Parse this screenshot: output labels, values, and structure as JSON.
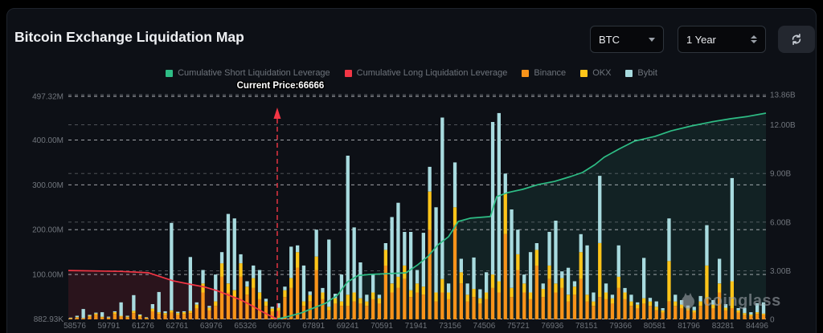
{
  "header": {
    "title": "Bitcoin Exchange Liquidation Map"
  },
  "controls": {
    "symbol_select": {
      "value": "BTC"
    },
    "range_select": {
      "value": "1 Year"
    }
  },
  "legend": {
    "items": [
      {
        "label": "Cumulative Short Liquidation Leverage",
        "color": "#2EBD85"
      },
      {
        "label": "Cumulative Long Liquidation Leverage",
        "color": "#F23645"
      },
      {
        "label": "Binance",
        "color": "#F7931A"
      },
      {
        "label": "OKX",
        "color": "#FFC519"
      },
      {
        "label": "Bybit",
        "color": "#A8DBDF"
      }
    ]
  },
  "watermark": {
    "text": "coinglass"
  },
  "chart_data": {
    "type": "bar",
    "title": "Bitcoin Exchange Liquidation Map",
    "grid": true,
    "legend_position": "top",
    "x_tick_labels": [
      "58576",
      "59791",
      "61276",
      "62761",
      "63976",
      "65326",
      "66676",
      "67891",
      "69241",
      "70591",
      "71941",
      "73156",
      "74506",
      "75721",
      "76936",
      "78151",
      "79366",
      "80581",
      "81796",
      "83281",
      "84496"
    ],
    "left_axis": {
      "unit": "M",
      "max_value": 497.32,
      "ticks": [
        {
          "label": "882.93K",
          "value": 0.88293
        },
        {
          "label": "100.00M",
          "value": 100
        },
        {
          "label": "200.00M",
          "value": 200
        },
        {
          "label": "300.00M",
          "value": 300
        },
        {
          "label": "400.00M",
          "value": 400
        },
        {
          "label": "497.32M",
          "value": 497.32
        }
      ]
    },
    "right_axis": {
      "unit": "B",
      "max_value": 13.86,
      "ticks": [
        {
          "label": "0",
          "value": 0
        },
        {
          "label": "3.00B",
          "value": 3
        },
        {
          "label": "6.00B",
          "value": 6
        },
        {
          "label": "9.00B",
          "value": 9
        },
        {
          "label": "12.00B",
          "value": 12
        },
        {
          "label": "13.86B",
          "value": 13.86
        }
      ]
    },
    "bar_series": [
      {
        "name": "Binance",
        "color": "#F7931A"
      },
      {
        "name": "OKX",
        "color": "#FFC519"
      },
      {
        "name": "Bybit",
        "color": "#A8DBDF"
      }
    ],
    "bars_unit": "M",
    "bars": [
      [
        2,
        1,
        1
      ],
      [
        4,
        1,
        3
      ],
      [
        2,
        1,
        20
      ],
      [
        6,
        2,
        2
      ],
      [
        10,
        3,
        2
      ],
      [
        4,
        2,
        10
      ],
      [
        3,
        1,
        2
      ],
      [
        12,
        4,
        2
      ],
      [
        6,
        2,
        30
      ],
      [
        4,
        2,
        2
      ],
      [
        14,
        5,
        35
      ],
      [
        6,
        3,
        2
      ],
      [
        3,
        1,
        1
      ],
      [
        18,
        6,
        10
      ],
      [
        12,
        4,
        45
      ],
      [
        10,
        4,
        4
      ],
      [
        15,
        5,
        195
      ],
      [
        10,
        4,
        3
      ],
      [
        12,
        4,
        2
      ],
      [
        14,
        5,
        120
      ],
      [
        25,
        8,
        5
      ],
      [
        60,
        20,
        30
      ],
      [
        20,
        6,
        4
      ],
      [
        30,
        10,
        60
      ],
      [
        95,
        30,
        25
      ],
      [
        60,
        20,
        155
      ],
      [
        50,
        15,
        160
      ],
      [
        95,
        30,
        20
      ],
      [
        55,
        18,
        12
      ],
      [
        70,
        22,
        28
      ],
      [
        45,
        15,
        50
      ],
      [
        30,
        10,
        6
      ],
      [
        18,
        6,
        4
      ],
      [
        20,
        6,
        10
      ],
      [
        50,
        15,
        8
      ],
      [
        70,
        22,
        70
      ],
      [
        115,
        35,
        15
      ],
      [
        30,
        10,
        80
      ],
      [
        40,
        14,
        8
      ],
      [
        110,
        30,
        60
      ],
      [
        45,
        15,
        10
      ],
      [
        20,
        8,
        150
      ],
      [
        35,
        12,
        10
      ],
      [
        30,
        10,
        60
      ],
      [
        30,
        25,
        310
      ],
      [
        40,
        20,
        145
      ],
      [
        35,
        12,
        80
      ],
      [
        30,
        10,
        15
      ],
      [
        45,
        15,
        40
      ],
      [
        35,
        12,
        8
      ],
      [
        120,
        35,
        15
      ],
      [
        60,
        20,
        148
      ],
      [
        70,
        25,
        165
      ],
      [
        90,
        30,
        75
      ],
      [
        50,
        15,
        130
      ],
      [
        60,
        20,
        30
      ],
      [
        55,
        18,
        120
      ],
      [
        200,
        85,
        55
      ],
      [
        40,
        20,
        190
      ],
      [
        60,
        30,
        360
      ],
      [
        45,
        15,
        20
      ],
      [
        210,
        40,
        100
      ],
      [
        80,
        25,
        30
      ],
      [
        40,
        15,
        25
      ],
      [
        50,
        18,
        70
      ],
      [
        35,
        12,
        20
      ],
      [
        45,
        15,
        45
      ],
      [
        70,
        30,
        340
      ],
      [
        60,
        25,
        375
      ],
      [
        190,
        90,
        45
      ],
      [
        50,
        20,
        175
      ],
      [
        110,
        35,
        55
      ],
      [
        60,
        20,
        20
      ],
      [
        45,
        15,
        90
      ],
      [
        120,
        35,
        15
      ],
      [
        50,
        18,
        12
      ],
      [
        90,
        30,
        75
      ],
      [
        60,
        20,
        140
      ],
      [
        70,
        22,
        15
      ],
      [
        40,
        15,
        60
      ],
      [
        55,
        18,
        12
      ],
      [
        90,
        60,
        40
      ],
      [
        40,
        15,
        110
      ],
      [
        30,
        10,
        20
      ],
      [
        50,
        120,
        150
      ],
      [
        45,
        15,
        20
      ],
      [
        35,
        12,
        8
      ],
      [
        70,
        25,
        70
      ],
      [
        45,
        15,
        10
      ],
      [
        30,
        10,
        15
      ],
      [
        25,
        8,
        5
      ],
      [
        35,
        12,
        90
      ],
      [
        30,
        10,
        8
      ],
      [
        20,
        8,
        12
      ],
      [
        15,
        5,
        5
      ],
      [
        40,
        90,
        95
      ],
      [
        30,
        10,
        15
      ],
      [
        25,
        8,
        10
      ],
      [
        20,
        6,
        5
      ],
      [
        15,
        5,
        8
      ],
      [
        30,
        10,
        12
      ],
      [
        45,
        75,
        90
      ],
      [
        25,
        8,
        10
      ],
      [
        60,
        20,
        55
      ],
      [
        20,
        6,
        8
      ],
      [
        25,
        60,
        230
      ],
      [
        15,
        5,
        5
      ],
      [
        10,
        4,
        12
      ],
      [
        8,
        3,
        5
      ],
      [
        12,
        4,
        20
      ],
      [
        10,
        3,
        25
      ]
    ],
    "lines": [
      {
        "name": "Cumulative Long Liquidation Leverage",
        "color": "#F23645",
        "fill": "rgba(242,54,69,0.13)",
        "axis": "left",
        "unit": "M",
        "points": [
          [
            0.0,
            109
          ],
          [
            0.075,
            107
          ],
          [
            0.115,
            104
          ],
          [
            0.15,
            86
          ],
          [
            0.179,
            77
          ],
          [
            0.196,
            72
          ],
          [
            0.213,
            64
          ],
          [
            0.23,
            54
          ],
          [
            0.248,
            43
          ],
          [
            0.265,
            29
          ],
          [
            0.277,
            18
          ],
          [
            0.288,
            9
          ],
          [
            0.2995,
            1
          ]
        ]
      },
      {
        "name": "Cumulative Short Liquidation Leverage",
        "color": "#2EBD85",
        "fill": "rgba(62,186,158,0.11)",
        "axis": "right",
        "unit": "B",
        "points": [
          [
            0.2995,
            0.02
          ],
          [
            0.317,
            0.2
          ],
          [
            0.334,
            0.4
          ],
          [
            0.351,
            0.7
          ],
          [
            0.369,
            1.0
          ],
          [
            0.386,
            1.5
          ],
          [
            0.4,
            2.3
          ],
          [
            0.415,
            2.7
          ],
          [
            0.432,
            2.77
          ],
          [
            0.484,
            2.87
          ],
          [
            0.501,
            3.37
          ],
          [
            0.515,
            3.86
          ],
          [
            0.53,
            4.6
          ],
          [
            0.545,
            5.1
          ],
          [
            0.559,
            6.04
          ],
          [
            0.576,
            6.24
          ],
          [
            0.605,
            6.34
          ],
          [
            0.614,
            7.57
          ],
          [
            0.63,
            7.82
          ],
          [
            0.651,
            8.02
          ],
          [
            0.674,
            8.32
          ],
          [
            0.697,
            8.51
          ],
          [
            0.72,
            8.81
          ],
          [
            0.737,
            9.06
          ],
          [
            0.755,
            9.55
          ],
          [
            0.768,
            10.0
          ],
          [
            0.789,
            10.5
          ],
          [
            0.812,
            11.0
          ],
          [
            0.841,
            11.29
          ],
          [
            0.864,
            11.63
          ],
          [
            0.893,
            11.93
          ],
          [
            0.922,
            12.18
          ],
          [
            0.95,
            12.38
          ],
          [
            0.974,
            12.52
          ],
          [
            1.0,
            12.72
          ]
        ]
      }
    ],
    "annotation": {
      "text": "Current Price:66666",
      "x_frac": 0.2995,
      "color": "#F23645"
    }
  }
}
